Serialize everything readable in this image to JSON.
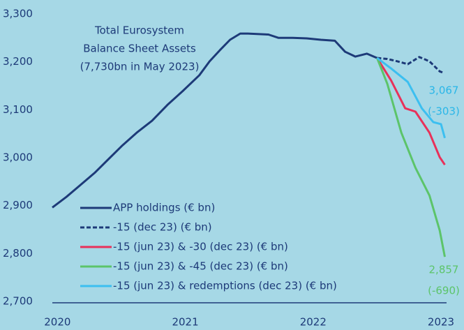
{
  "chart_data": {
    "type": "line",
    "annotations": [
      {
        "lines": [
          "Total Eurosystem",
          "Balance Sheet Assets",
          "(7,730bn in May 2023)"
        ],
        "color": "#1d3a78"
      },
      {
        "lines": [
          "3,067",
          "(-303)"
        ],
        "color": "#29b6e8"
      },
      {
        "lines": [
          "2,857",
          "(-690)"
        ],
        "color": "#5cc46a"
      }
    ],
    "xlim": [
      2019.96,
      2023.18
    ],
    "xticks": [
      2020,
      2021,
      2022,
      2023
    ],
    "ylim": [
      2700,
      3300
    ],
    "yticks": [
      {
        "value": 2700,
        "label": "2,700"
      },
      {
        "value": 2800,
        "label": "2,800"
      },
      {
        "value": 2900,
        "label": "2,900"
      },
      {
        "value": 3000,
        "label": "3,000"
      },
      {
        "value": 3100,
        "label": "3,100"
      },
      {
        "value": 3200,
        "label": "3,200"
      },
      {
        "value": 3300,
        "label": "3,300"
      }
    ],
    "legend": "lower left",
    "series": [
      {
        "name": "APP holdings (€ bn)",
        "color": "#1d3a78",
        "dashed": false,
        "x": [
          2019.96,
          2020.07,
          2020.18,
          2020.29,
          2020.4,
          2020.51,
          2020.62,
          2020.74,
          2020.86,
          2020.98,
          2021.11,
          2021.19,
          2021.27,
          2021.35,
          2021.43,
          2021.49,
          2021.65,
          2021.73,
          2021.84,
          2021.95,
          2022.06,
          2022.17,
          2022.25,
          2022.33,
          2022.42,
          2022.5
        ],
        "values": [
          2899,
          2921,
          2946,
          2971,
          3000,
          3029,
          3055,
          3080,
          3113,
          3142,
          3175,
          3204,
          3227,
          3249,
          3262,
          3262,
          3260,
          3253,
          3253,
          3252,
          3249,
          3247,
          3224,
          3214,
          3220,
          3211
        ]
      },
      {
        "name": "-15 (dec 23) (€ bn)",
        "color": "#1d3a78",
        "dashed": true,
        "x": [
          2022.5,
          2022.58,
          2022.66,
          2022.74,
          2022.83,
          2022.91,
          2022.99,
          2023.02
        ],
        "values": [
          3211,
          3209,
          3204,
          3198,
          3213,
          3204,
          3183,
          3180
        ]
      },
      {
        "name": "-15 (jun 23) & -30 (dec 23) (€ bn)",
        "color": "#e8315a",
        "dashed": false,
        "x": [
          2022.5,
          2022.61,
          2022.72,
          2022.8,
          2022.91,
          2022.99,
          2023.03
        ],
        "values": [
          3211,
          3164,
          3106,
          3099,
          3055,
          3004,
          2988
        ]
      },
      {
        "name": "-15 (jun 23) & -45 (dec 23) (€ bn)",
        "color": "#5cc46a",
        "dashed": false,
        "x": [
          2022.5,
          2022.58,
          2022.69,
          2022.8,
          2022.91,
          2022.99,
          2023.03
        ],
        "values": [
          3211,
          3157,
          3055,
          2982,
          2924,
          2851,
          2796
        ]
      },
      {
        "name": "-15 (jun 23) & redemptions (dec 23) (€ bn)",
        "color": "#3cbff0",
        "dashed": false,
        "x": [
          2022.5,
          2022.61,
          2022.74,
          2022.85,
          2022.94,
          2023.0,
          2023.03
        ],
        "values": [
          3211,
          3189,
          3161,
          3106,
          3077,
          3073,
          3044
        ]
      }
    ]
  }
}
